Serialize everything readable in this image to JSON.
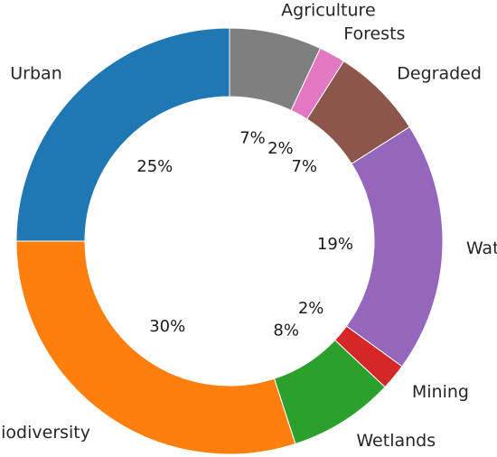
{
  "chart_data": {
    "type": "pie",
    "style": "donut",
    "slices": [
      {
        "label": "Agriculture",
        "value": 7,
        "display": "7%",
        "color": "#7f7f7f"
      },
      {
        "label": "Forests",
        "value": 2,
        "display": "2%",
        "color": "#e377c2"
      },
      {
        "label": "Degraded",
        "value": 7,
        "display": "7%",
        "color": "#8c564b"
      },
      {
        "label": "Water",
        "value": 19,
        "display": "19%",
        "color": "#9467bd"
      },
      {
        "label": "Mining",
        "value": 2,
        "display": "2%",
        "color": "#d62728"
      },
      {
        "label": "Wetlands",
        "value": 8,
        "display": "8%",
        "color": "#2ca02c"
      },
      {
        "label": "Biodiversity",
        "value": 30,
        "display": "30%",
        "color": "#ff7f0e"
      },
      {
        "label": "Urban",
        "value": 25,
        "display": "25%",
        "color": "#1f77b4"
      }
    ],
    "start_angle": "top (12 o'clock)",
    "direction": "clockwise",
    "legend": "none"
  }
}
